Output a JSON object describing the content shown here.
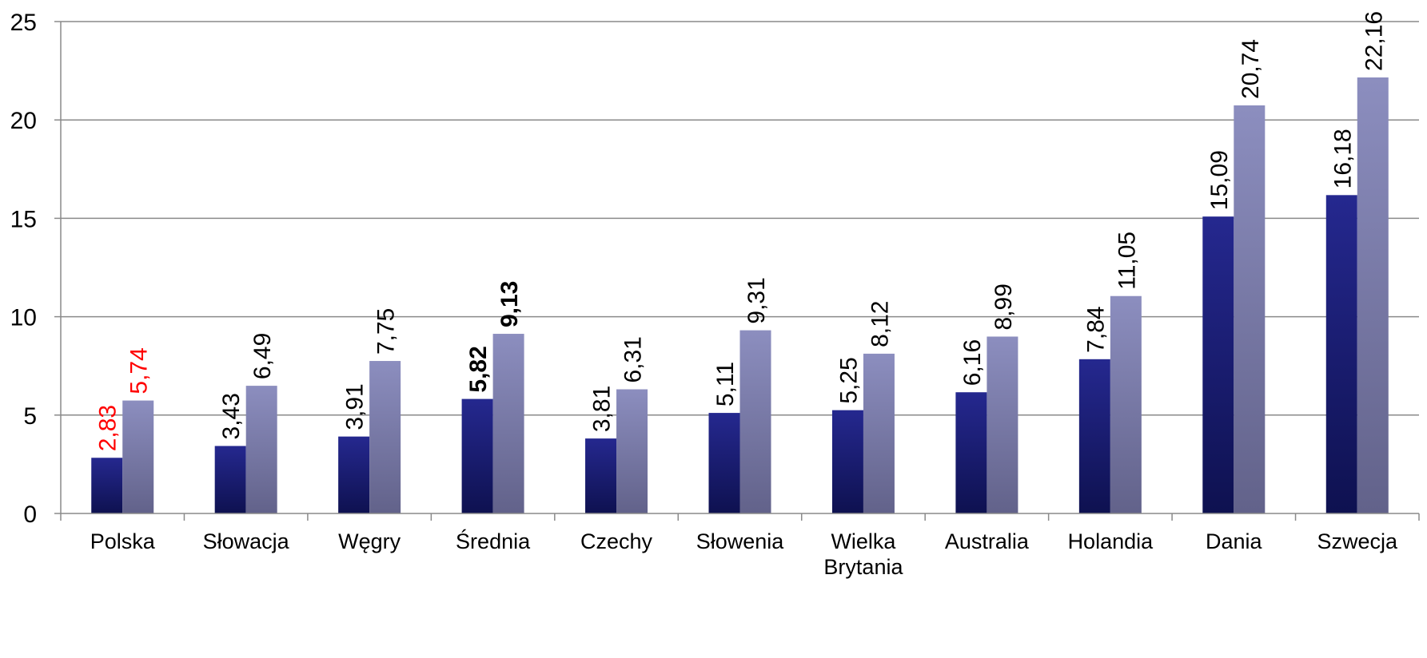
{
  "chart_data": {
    "type": "bar",
    "categories": [
      "Polska",
      "Słowacja",
      "Węgry",
      "Średnia",
      "Czechy",
      "Słowenia",
      "Wielka Brytania",
      "Australia",
      "Holandia",
      "Dania",
      "Szwecja"
    ],
    "category_lines": [
      [
        "Polska"
      ],
      [
        "Słowacja"
      ],
      [
        "Węgry"
      ],
      [
        "Średnia"
      ],
      [
        "Czechy"
      ],
      [
        "Słowenia"
      ],
      [
        "Wielka",
        "Brytania"
      ],
      [
        "Australia"
      ],
      [
        "Holandia"
      ],
      [
        "Dania"
      ],
      [
        "Szwecja"
      ]
    ],
    "series": [
      {
        "values": [
          2.83,
          3.43,
          3.91,
          5.82,
          3.81,
          5.11,
          5.25,
          6.16,
          7.84,
          15.09,
          16.18
        ],
        "color_top": "#25288f",
        "color_bottom": "#0e1150"
      },
      {
        "values": [
          5.74,
          6.49,
          7.75,
          9.13,
          6.31,
          9.31,
          8.12,
          8.99,
          11.05,
          20.74,
          22.16
        ],
        "color_top": "#8c8ebf",
        "color_bottom": "#62628a"
      }
    ],
    "data_labels": [
      [
        "2,83",
        "3,43",
        "3,91",
        "5,82",
        "3,81",
        "5,11",
        "5,25",
        "6,16",
        "7,84",
        "15,09",
        "16,18"
      ],
      [
        "5,74",
        "6,49",
        "7,75",
        "9,13",
        "6,31",
        "9,31",
        "8,12",
        "8,99",
        "11,05",
        "20,74",
        "22,16"
      ]
    ],
    "highlight": {
      "Polska": {
        "color": "#ff0000"
      },
      "Średnia": {
        "bold": true
      }
    },
    "ylim": [
      0,
      25
    ],
    "yticks": [
      0,
      5,
      10,
      15,
      20,
      25
    ],
    "ytick_labels": [
      "0",
      "5",
      "10",
      "15",
      "20",
      "25"
    ],
    "grid": true,
    "legend": "none",
    "colors": {
      "grid": "#8a8a8a",
      "axis": "#8a8a8a",
      "text": "#000000"
    }
  }
}
